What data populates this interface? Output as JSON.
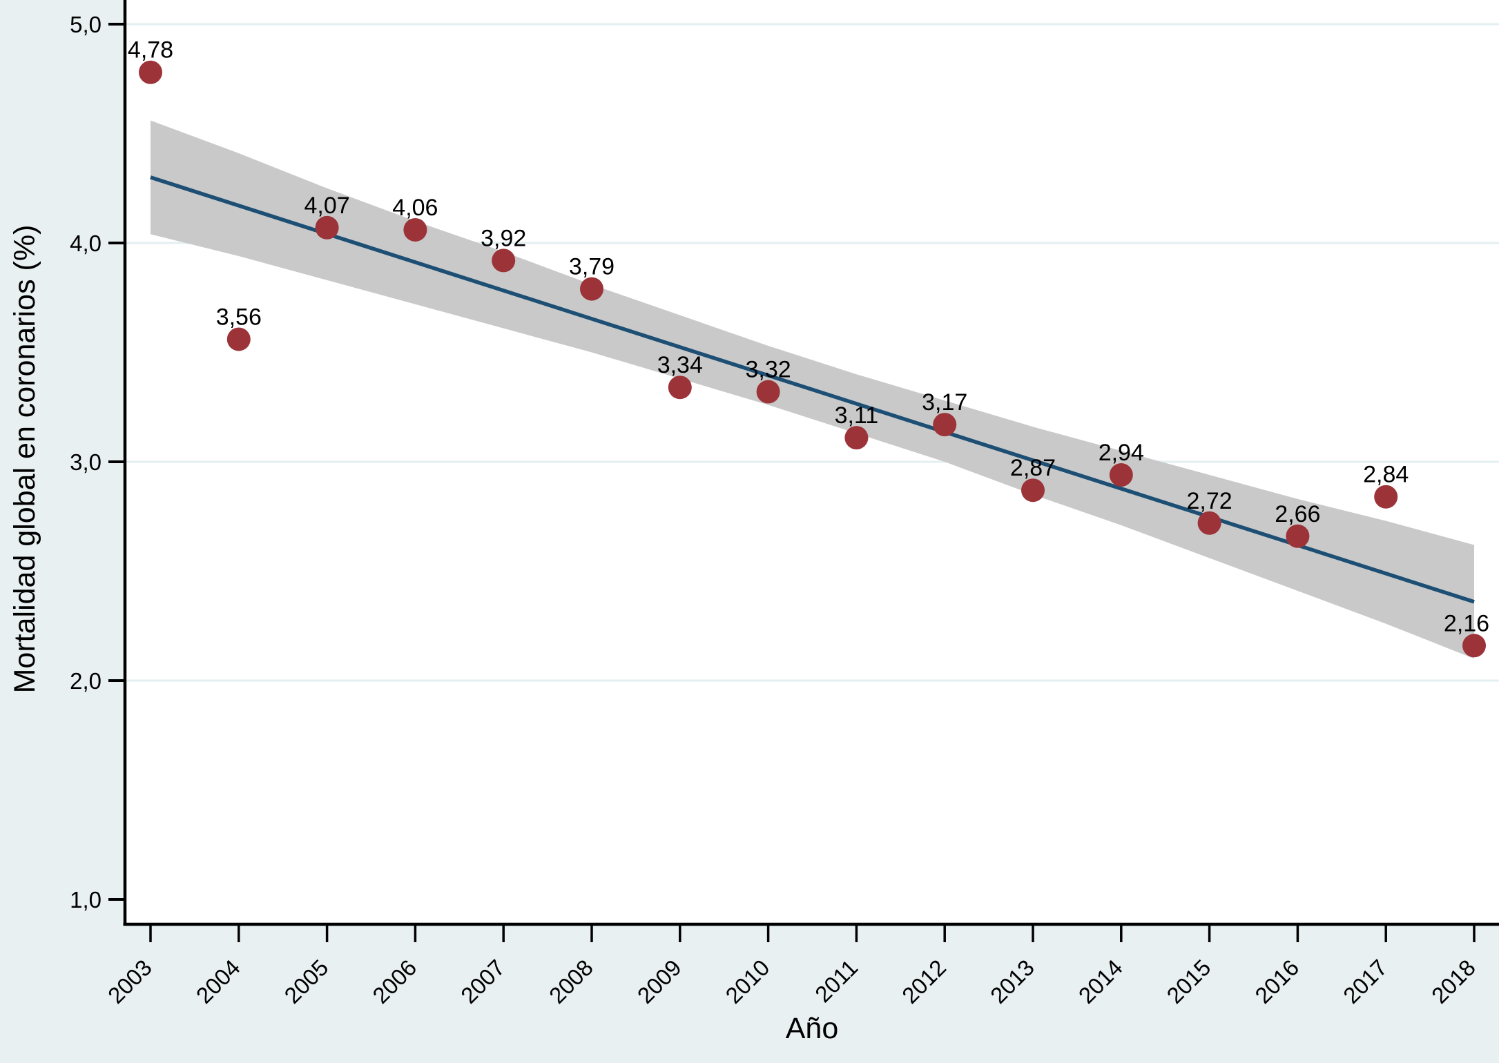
{
  "figure": {
    "background_color": "#e9f0f2",
    "plot_background_color": "#ffffff",
    "grid_color": "#e3eff1",
    "axis_color": "#000000",
    "text_color": "#000000"
  },
  "chart_data": {
    "type": "scatter",
    "title": "",
    "xlabel": "Año",
    "ylabel": "Mortalidad global en coronarios (%)",
    "xlim": [
      2002.7,
      2018.3
    ],
    "ylim": [
      0.88,
      5.11
    ],
    "grid": "horizontal",
    "legend": "none",
    "x_tick_labels": [
      "2003",
      "2004",
      "2005",
      "2006",
      "2007",
      "2008",
      "2009",
      "2010",
      "2011",
      "2012",
      "2013",
      "2014",
      "2015",
      "2016",
      "2017",
      "2018"
    ],
    "x_tick_values": [
      2003,
      2004,
      2005,
      2006,
      2007,
      2008,
      2009,
      2010,
      2011,
      2012,
      2013,
      2014,
      2015,
      2016,
      2017,
      2018
    ],
    "y_ticks": [
      {
        "value": 1.0,
        "label": "1,0"
      },
      {
        "value": 2.0,
        "label": "2,0"
      },
      {
        "value": 3.0,
        "label": "3,0"
      },
      {
        "value": 4.0,
        "label": "4,0"
      },
      {
        "value": 5.0,
        "label": "5,0"
      }
    ],
    "y_grid_values": [
      2.0,
      3.0,
      4.0,
      5.0
    ],
    "series": [
      {
        "name": "intervalo-confianza-95",
        "type": "band",
        "color": "#c9c9c9",
        "x": [
          2003,
          2004,
          2005,
          2006,
          2007,
          2008,
          2009,
          2010,
          2011,
          2012,
          2013,
          2014,
          2015,
          2016,
          2017,
          2018
        ],
        "upper": [
          4.56,
          4.41,
          4.25,
          4.1,
          3.96,
          3.81,
          3.67,
          3.53,
          3.4,
          3.28,
          3.16,
          3.05,
          2.94,
          2.83,
          2.73,
          2.62
        ],
        "lower": [
          4.04,
          3.94,
          3.83,
          3.72,
          3.61,
          3.5,
          3.38,
          3.26,
          3.13,
          3.0,
          2.85,
          2.71,
          2.56,
          2.41,
          2.26,
          2.1
        ]
      },
      {
        "name": "ajuste-lineal",
        "type": "line",
        "color": "#1d4f75",
        "x": [
          2003,
          2018
        ],
        "y": [
          4.3,
          2.36
        ]
      },
      {
        "name": "mortalidad-observada",
        "type": "scatter",
        "color": "#9c3338",
        "x": [
          2003,
          2004,
          2005,
          2006,
          2007,
          2008,
          2009,
          2010,
          2011,
          2012,
          2013,
          2014,
          2015,
          2016,
          2017,
          2018
        ],
        "y": [
          4.78,
          3.56,
          4.07,
          4.06,
          3.92,
          3.79,
          3.34,
          3.32,
          3.11,
          3.17,
          2.87,
          2.94,
          2.72,
          2.66,
          2.84,
          2.16
        ],
        "point_labels": [
          "4,78",
          "3,56",
          "4,07",
          "4,06",
          "3,92",
          "3,79",
          "3,34",
          "3,32",
          "3,11",
          "3,17",
          "2,87",
          "2,94",
          "2,72",
          "2,66",
          "2,84",
          "2,16"
        ]
      }
    ]
  }
}
